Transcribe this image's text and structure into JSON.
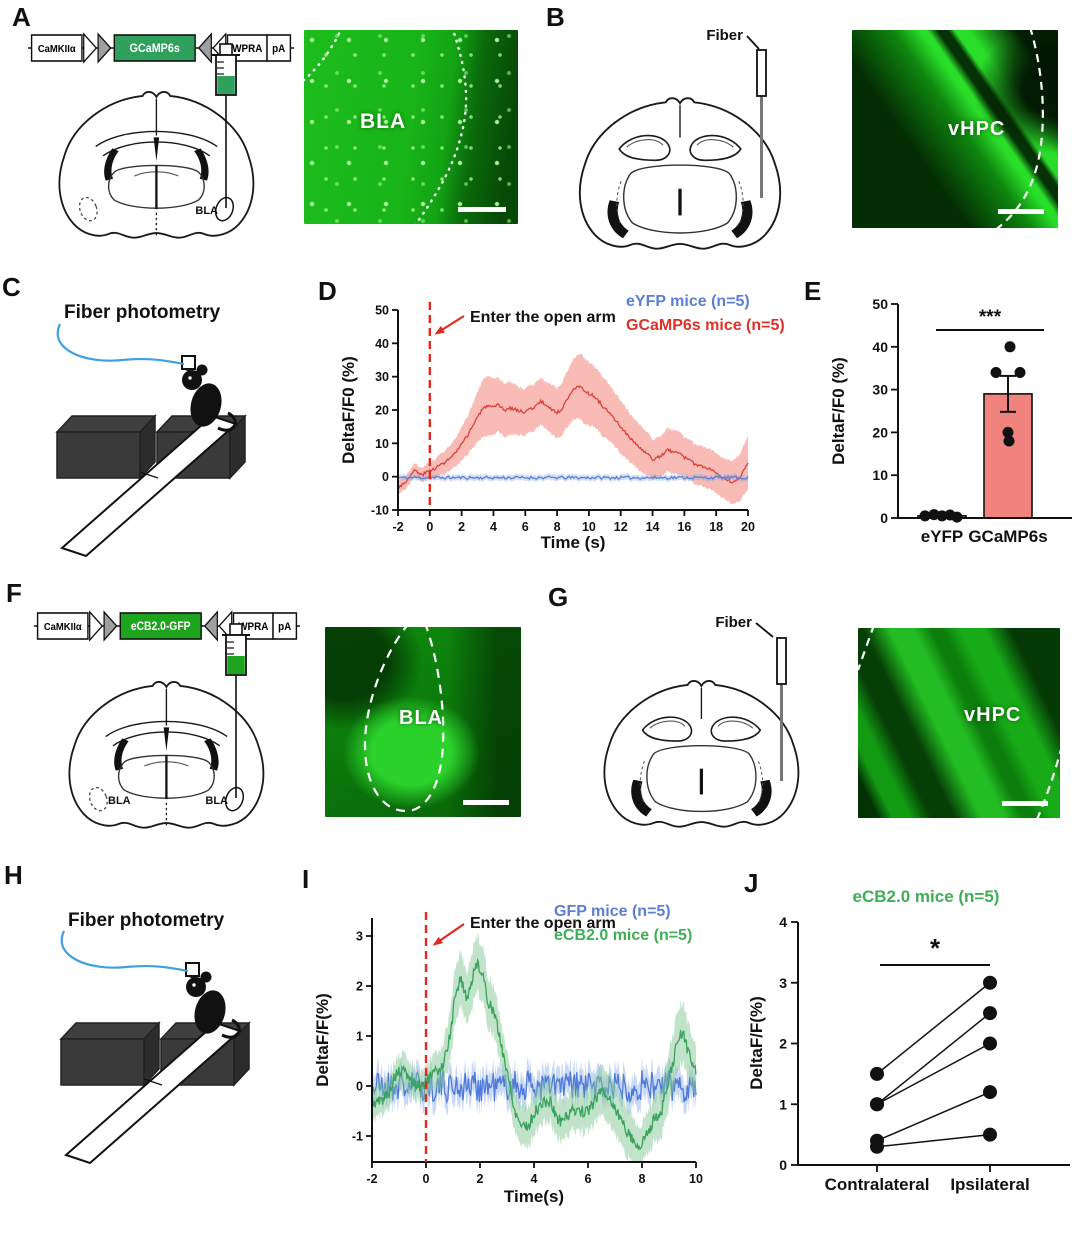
{
  "figure": {
    "A": {
      "letter": "A",
      "construct": {
        "promoter": "CaMKIIα",
        "gene": "GCaMP6s",
        "gene_color": "#2fa15c",
        "element1": "WPRA",
        "element2": "pA"
      },
      "brain_region_label": "BLA",
      "image_label": "BLA"
    },
    "B": {
      "letter": "B",
      "fiber_label": "Fiber",
      "image_label": "vHPC"
    },
    "C": {
      "letter": "C",
      "title": "Fiber photometry"
    },
    "D": {
      "letter": "D"
    },
    "E": {
      "letter": "E"
    },
    "F": {
      "letter": "F",
      "construct": {
        "promoter": "CaMKIIα",
        "gene": "eCB2.0-GFP",
        "gene_color": "#1fa41f",
        "element1": "WPRA",
        "element2": "pA"
      },
      "brain_region_label_left": "BLA",
      "brain_region_label_right": "BLA",
      "image_label": "BLA"
    },
    "G": {
      "letter": "G",
      "fiber_label": "Fiber",
      "image_label": "vHPC"
    },
    "H": {
      "letter": "H",
      "title": "Fiber photometry"
    },
    "I": {
      "letter": "I"
    },
    "J": {
      "letter": "J"
    }
  },
  "chart_data": [
    {
      "id": "D",
      "type": "line",
      "title": "",
      "xlabel": "Time (s)",
      "ylabel": "DeltaF/F0 (%)",
      "x": {
        "min": -2,
        "max": 20,
        "ticks": [
          -2,
          0,
          2,
          4,
          6,
          8,
          10,
          12,
          14,
          16,
          18,
          20
        ]
      },
      "y": {
        "min": -10,
        "max": 50,
        "ticks": [
          -10,
          0,
          10,
          20,
          30,
          40,
          50
        ]
      },
      "event": {
        "x": 0,
        "label": "Enter the open arm",
        "color": "#e02a20"
      },
      "legend": [
        {
          "label": "eYFP mice (n=5)",
          "color": "#5b7fd6"
        },
        {
          "label": "GCaMP6s mice (n=5)",
          "color": "#e03127"
        }
      ],
      "series": [
        {
          "name": "GCaMP6s mice (n=5)",
          "color": "#d9423a",
          "band_color": "rgba(244,132,122,0.55)",
          "jitter": 0.5,
          "seed": 3,
          "samples": 320,
          "points": [
            [
              -2,
              -3,
              2
            ],
            [
              -1.6,
              -2,
              2
            ],
            [
              -1.2,
              0.5,
              2
            ],
            [
              -0.9,
              2,
              2
            ],
            [
              -0.6,
              0.5,
              2
            ],
            [
              -0.3,
              1,
              2.2
            ],
            [
              0,
              1.8,
              2.5
            ],
            [
              0.5,
              3,
              3
            ],
            [
              1,
              4.5,
              3.5
            ],
            [
              1.5,
              6.5,
              4
            ],
            [
              2,
              9.5,
              5
            ],
            [
              2.5,
              13.5,
              6
            ],
            [
              3,
              18,
              7.5
            ],
            [
              3.3,
              20,
              8.5
            ],
            [
              3.6,
              21.5,
              9
            ],
            [
              4,
              20.5,
              8.5
            ],
            [
              4.3,
              21.5,
              8
            ],
            [
              4.7,
              19.8,
              8
            ],
            [
              5,
              20.6,
              8
            ],
            [
              5.4,
              20.2,
              7.5
            ],
            [
              5.8,
              19.4,
              7
            ],
            [
              6.2,
              20,
              7
            ],
            [
              6.6,
              21,
              7
            ],
            [
              7,
              22.6,
              7
            ],
            [
              7.3,
              21.4,
              7
            ],
            [
              7.7,
              20.2,
              7.5
            ],
            [
              8,
              19,
              7.5
            ],
            [
              8.4,
              21,
              8
            ],
            [
              8.7,
              24,
              8.5
            ],
            [
              9,
              26.4,
              9
            ],
            [
              9.3,
              27.2,
              9.5
            ],
            [
              9.6,
              26.2,
              10
            ],
            [
              10,
              25,
              9.5
            ],
            [
              10.4,
              23.8,
              9
            ],
            [
              10.8,
              21.6,
              9
            ],
            [
              11.2,
              19.4,
              8.5
            ],
            [
              11.6,
              17.2,
              8
            ],
            [
              12,
              15,
              8
            ],
            [
              12.4,
              12.6,
              7.5
            ],
            [
              12.8,
              10.4,
              7
            ],
            [
              13.2,
              8.6,
              7
            ],
            [
              13.6,
              7,
              6.5
            ],
            [
              14,
              5.2,
              6
            ],
            [
              14.5,
              6,
              6
            ],
            [
              15,
              8.2,
              6.5
            ],
            [
              15.3,
              7,
              6.5
            ],
            [
              15.6,
              7.6,
              6.5
            ],
            [
              16,
              5.8,
              6
            ],
            [
              16.5,
              4.2,
              6
            ],
            [
              17,
              3.2,
              6
            ],
            [
              17.5,
              2.6,
              6
            ],
            [
              18,
              1.4,
              6
            ],
            [
              18.5,
              -0.6,
              6
            ],
            [
              19,
              -2.2,
              6.5
            ],
            [
              19.5,
              -0.2,
              7
            ],
            [
              20,
              4.2,
              8
            ]
          ]
        },
        {
          "name": "eYFP mice (n=5)",
          "color": "#5b7fd6",
          "band_color": "rgba(130,165,230,0.35)",
          "mode": "noise",
          "mean": -0.3,
          "amplitude": 0.45,
          "band": 0.9,
          "n": 230,
          "seed": 11
        }
      ]
    },
    {
      "id": "E",
      "type": "bar",
      "title": "",
      "ylabel": "DeltaF/F0 (%)",
      "y": {
        "min": 0,
        "max": 50,
        "ticks": [
          0,
          10,
          20,
          30,
          40,
          50
        ]
      },
      "categories": [
        "eYFP",
        "GCaMP6s"
      ],
      "values": [
        0.5,
        29
      ],
      "errors": [
        0.3,
        4.2
      ],
      "bar_color": "#f0837e",
      "points": [
        [
          [
            -17,
            0.5
          ],
          [
            -8,
            0.8
          ],
          [
            0,
            0.5
          ],
          [
            8,
            0.7
          ],
          [
            15,
            0.2
          ]
        ],
        [
          [
            -12,
            34
          ],
          [
            12,
            34
          ],
          [
            2,
            40
          ],
          [
            0,
            20
          ],
          [
            1,
            18
          ]
        ]
      ],
      "sig": "***"
    },
    {
      "id": "I",
      "type": "line",
      "title": "",
      "xlabel": "Time(s)",
      "ylabel": "DeltaF/F(%)",
      "x": {
        "min": -2,
        "max": 10,
        "ticks": [
          -2,
          0,
          2,
          4,
          6,
          8,
          10
        ]
      },
      "y": {
        "min": -1.52,
        "max": 3.36,
        "ticks": [
          -1,
          0,
          1,
          2,
          3
        ]
      },
      "event": {
        "x": 0,
        "label": "Enter the open arm",
        "color": "#e02a20"
      },
      "legend": [
        {
          "label": "GFP mice (n=5)",
          "color": "#5b7fd6"
        },
        {
          "label": "eCB2.0 mice (n=5)",
          "color": "#3fae57"
        }
      ],
      "series": [
        {
          "name": "GFP mice (n=5)",
          "color": "#4f7ad9",
          "band_color": "rgba(120,160,230,0.4)",
          "mode": "noise",
          "mean": 0,
          "amplitude": 0.32,
          "band": 0.28,
          "n": 300,
          "seed": 21
        },
        {
          "name": "eCB2.0 mice (n=5)",
          "color": "#3aa35c",
          "band_color": "rgba(130,200,150,0.5)",
          "jitter": 0.12,
          "seed": 5,
          "samples": 400,
          "points": [
            [
              -2,
              -0.35,
              0.3
            ],
            [
              -1.7,
              -0.3,
              0.3
            ],
            [
              -1.4,
              -0.15,
              0.3
            ],
            [
              -1.1,
              0.25,
              0.3
            ],
            [
              -0.8,
              0.3,
              0.35
            ],
            [
              -0.5,
              0.05,
              0.3
            ],
            [
              -0.2,
              0,
              0.3
            ],
            [
              0,
              0.1,
              0.3
            ],
            [
              0.3,
              0.25,
              0.35
            ],
            [
              0.6,
              0.4,
              0.4
            ],
            [
              0.9,
              1,
              0.5
            ],
            [
              1.1,
              1.9,
              0.55
            ],
            [
              1.3,
              2.15,
              0.55
            ],
            [
              1.5,
              1.75,
              0.5
            ],
            [
              1.7,
              2.1,
              0.55
            ],
            [
              1.9,
              2.5,
              0.55
            ],
            [
              2.1,
              2.2,
              0.55
            ],
            [
              2.3,
              1.7,
              0.5
            ],
            [
              2.5,
              1.5,
              0.5
            ],
            [
              2.7,
              1.05,
              0.45
            ],
            [
              2.9,
              0.55,
              0.4
            ],
            [
              3.1,
              0,
              0.4
            ],
            [
              3.3,
              -0.5,
              0.4
            ],
            [
              3.5,
              -0.75,
              0.4
            ],
            [
              3.8,
              -0.8,
              0.4
            ],
            [
              4,
              -0.55,
              0.4
            ],
            [
              4.3,
              -0.35,
              0.4
            ],
            [
              4.6,
              -0.3,
              0.4
            ],
            [
              4.8,
              -0.6,
              0.4
            ],
            [
              5,
              -0.7,
              0.4
            ],
            [
              5.3,
              -0.55,
              0.4
            ],
            [
              5.6,
              -0.45,
              0.4
            ],
            [
              5.9,
              -0.55,
              0.4
            ],
            [
              6.2,
              -0.35,
              0.45
            ],
            [
              6.5,
              -0.05,
              0.5
            ],
            [
              6.8,
              -0.25,
              0.5
            ],
            [
              7.1,
              -0.55,
              0.5
            ],
            [
              7.4,
              -0.85,
              0.5
            ],
            [
              7.7,
              -1.1,
              0.45
            ],
            [
              7.9,
              -1.25,
              0.4
            ],
            [
              8.1,
              -1.05,
              0.4
            ],
            [
              8.4,
              -0.7,
              0.45
            ],
            [
              8.7,
              -0.55,
              0.5
            ],
            [
              9,
              0.1,
              0.55
            ],
            [
              9.3,
              0.85,
              0.6
            ],
            [
              9.5,
              1.1,
              0.6
            ],
            [
              9.7,
              0.7,
              0.55
            ],
            [
              10,
              0.3,
              0.5
            ]
          ]
        }
      ]
    },
    {
      "id": "J",
      "type": "paired",
      "title": "eCB2.0 mice (n=5)",
      "title_color": "#3fae57",
      "ylabel": "DeltaF/F(%)",
      "y": {
        "min": 0,
        "max": 4,
        "ticks": [
          0,
          1,
          2,
          3,
          4
        ]
      },
      "categories": [
        "Contralateral",
        "Ipsilateral"
      ],
      "pairs": [
        [
          1.5,
          3
        ],
        [
          1,
          2.5
        ],
        [
          1,
          2
        ],
        [
          0.4,
          1.2
        ],
        [
          0.3,
          0.5
        ]
      ],
      "sig": "*"
    }
  ]
}
